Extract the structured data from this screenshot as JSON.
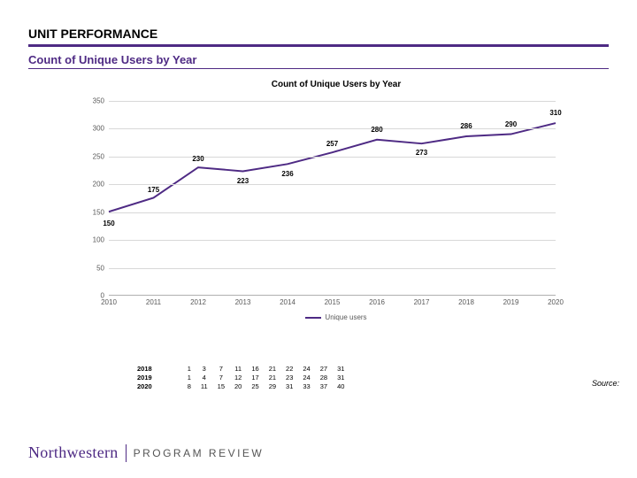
{
  "header": {
    "title": "UNIT PERFORMANCE",
    "subtitle": "Count of Unique Users by Year",
    "accent_color": "#4e2a84",
    "rule_color": "#4e2a84"
  },
  "chart": {
    "type": "line",
    "title": "Count of Unique Users by Year",
    "title_fontsize": 10,
    "background_color": "#ffffff",
    "grid_color": "#d8d8d8",
    "axis_color": "#b0b0b0",
    "line_color": "#4e2a84",
    "line_width": 2,
    "label_fontsize": 8,
    "ylim": [
      0,
      350
    ],
    "ytick_step": 50,
    "categories": [
      "2010",
      "2011",
      "2012",
      "2013",
      "2014",
      "2015",
      "2016",
      "2017",
      "2018",
      "2019",
      "2020"
    ],
    "series": [
      {
        "name": "Unique users",
        "color": "#4e2a84",
        "values": [
          150,
          175,
          230,
          223,
          236,
          257,
          280,
          273,
          286,
          290,
          310
        ]
      }
    ],
    "data_label_color": "#000000"
  },
  "legend": {
    "label": "Unique users"
  },
  "table": {
    "rows": [
      {
        "year": "2018",
        "cells": [
          "1",
          "3",
          "7",
          "11",
          "16",
          "21",
          "22",
          "24",
          "27",
          "31"
        ]
      },
      {
        "year": "2019",
        "cells": [
          "1",
          "4",
          "7",
          "12",
          "17",
          "21",
          "23",
          "24",
          "28",
          "31"
        ]
      },
      {
        "year": "2020",
        "cells": [
          "8",
          "11",
          "15",
          "20",
          "25",
          "29",
          "31",
          "33",
          "37",
          "40"
        ]
      }
    ]
  },
  "source_label": "Source:",
  "footer": {
    "brand": "Northwestern",
    "program": "PROGRAM REVIEW"
  }
}
